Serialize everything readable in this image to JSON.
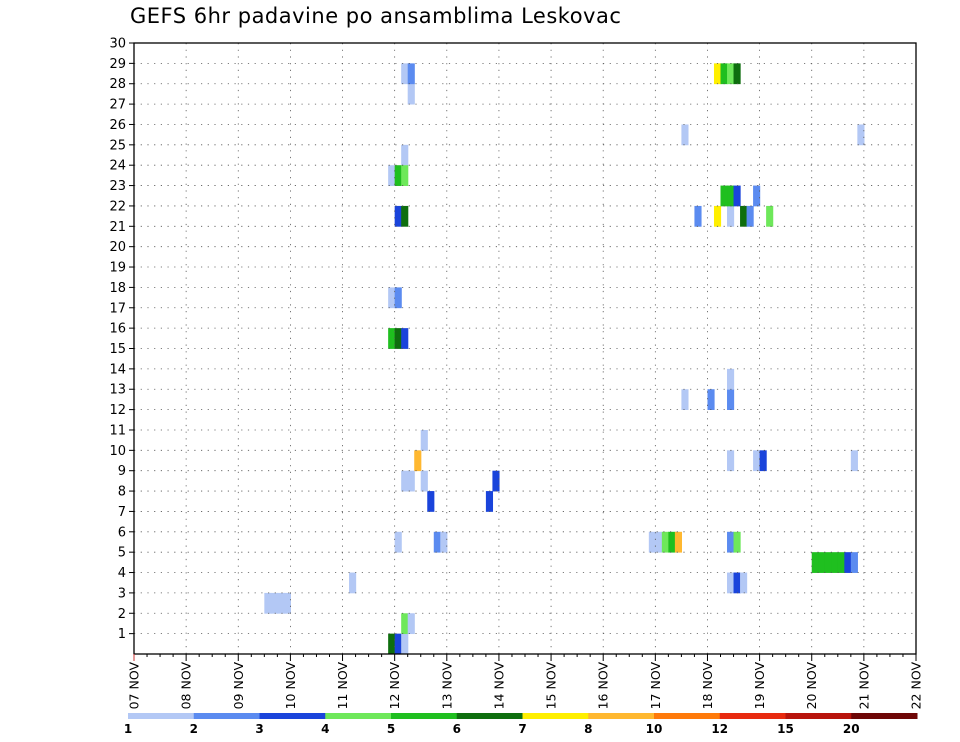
{
  "chart_data": {
    "type": "heatmap",
    "title": "GEFS 6hr padavine po ansamblima Leskovac",
    "x_tick_labels": [
      "07 NOV",
      "08 NOV",
      "09 NOV",
      "10 NOV",
      "11 NOV",
      "12 NOV",
      "13 NOV",
      "14 NOV",
      "15 NOV",
      "16 NOV",
      "17 NOV",
      "18 NOV",
      "19 NOV",
      "20 NOV",
      "21 NOV",
      "22 NOV"
    ],
    "x_unit": "hours since 07 NOV 00Z",
    "xlim": [
      0,
      360
    ],
    "y_tick_labels": [
      "1",
      "2",
      "3",
      "4",
      "5",
      "6",
      "7",
      "8",
      "9",
      "10",
      "11",
      "12",
      "13",
      "14",
      "15",
      "16",
      "17",
      "18",
      "19",
      "20",
      "21",
      "22",
      "23",
      "24",
      "25",
      "26",
      "27",
      "28",
      "29",
      "30"
    ],
    "ylim": [
      0,
      30
    ],
    "grid": true,
    "colorbar": {
      "placement": "bottom",
      "labels": [
        "1",
        "2",
        "3",
        "4",
        "5",
        "6",
        "7",
        "8",
        "10",
        "12",
        "15",
        "20"
      ],
      "colors": [
        "#b3c8f5",
        "#5b8bf0",
        "#1a44db",
        "#6ee85a",
        "#1fbf1f",
        "#0e6e0e",
        "#ffef00",
        "#ffb830",
        "#ff7a0a",
        "#e82a0f",
        "#b8140c",
        "#6e0606"
      ]
    },
    "cells": [
      [
        117,
        0,
        6
      ],
      [
        120,
        0,
        3
      ],
      [
        123,
        0,
        1
      ],
      [
        123,
        1,
        4
      ],
      [
        126,
        1,
        1
      ],
      [
        99,
        3,
        1
      ],
      [
        138,
        5,
        2
      ],
      [
        141,
        5,
        1
      ],
      [
        60,
        2,
        1
      ],
      [
        63,
        2,
        1
      ],
      [
        66,
        2,
        1
      ],
      [
        69,
        2,
        1
      ],
      [
        312,
        4,
        5
      ],
      [
        315,
        4,
        5
      ],
      [
        318,
        4,
        5
      ],
      [
        321,
        4,
        5
      ],
      [
        324,
        4,
        5
      ],
      [
        327,
        4,
        3
      ],
      [
        330,
        4,
        2
      ],
      [
        273,
        3,
        1
      ],
      [
        276,
        3,
        3
      ],
      [
        279,
        3,
        1
      ],
      [
        120,
        5,
        1
      ],
      [
        237,
        5,
        1
      ],
      [
        240,
        5,
        1
      ],
      [
        243,
        5,
        4
      ],
      [
        246,
        5,
        5
      ],
      [
        249,
        5,
        8
      ],
      [
        273,
        5,
        2
      ],
      [
        276,
        5,
        4
      ],
      [
        135,
        7,
        3
      ],
      [
        162,
        7,
        3
      ],
      [
        123,
        8,
        1
      ],
      [
        126,
        8,
        1
      ],
      [
        132,
        8,
        1
      ],
      [
        165,
        8,
        3
      ],
      [
        129,
        9,
        8
      ],
      [
        273,
        9,
        1
      ],
      [
        285,
        9,
        1
      ],
      [
        288,
        9,
        3
      ],
      [
        330,
        9,
        1
      ],
      [
        132,
        10,
        1
      ],
      [
        252,
        12,
        1
      ],
      [
        264,
        12,
        2
      ],
      [
        273,
        12,
        2
      ],
      [
        273,
        13,
        1
      ],
      [
        117,
        15,
        5
      ],
      [
        120,
        15,
        6
      ],
      [
        123,
        15,
        3
      ],
      [
        117,
        17,
        1
      ],
      [
        120,
        17,
        2
      ],
      [
        123,
        24,
        1
      ],
      [
        117,
        23,
        1
      ],
      [
        120,
        23,
        5
      ],
      [
        123,
        23,
        4
      ],
      [
        120,
        21,
        3
      ],
      [
        123,
        21,
        6
      ],
      [
        258,
        21,
        2
      ],
      [
        267,
        21,
        7
      ],
      [
        273,
        21,
        1
      ],
      [
        279,
        21,
        6
      ],
      [
        282,
        21,
        2
      ],
      [
        291,
        21,
        4
      ],
      [
        270,
        22,
        5
      ],
      [
        273,
        22,
        5
      ],
      [
        276,
        22,
        3
      ],
      [
        285,
        22,
        2
      ],
      [
        252,
        25,
        1
      ],
      [
        333,
        25,
        1
      ],
      [
        126,
        27,
        1
      ],
      [
        123,
        28,
        1
      ],
      [
        126,
        28,
        2
      ],
      [
        267,
        28,
        7
      ],
      [
        270,
        28,
        5
      ],
      [
        273,
        28,
        4
      ],
      [
        276,
        28,
        6
      ]
    ]
  }
}
